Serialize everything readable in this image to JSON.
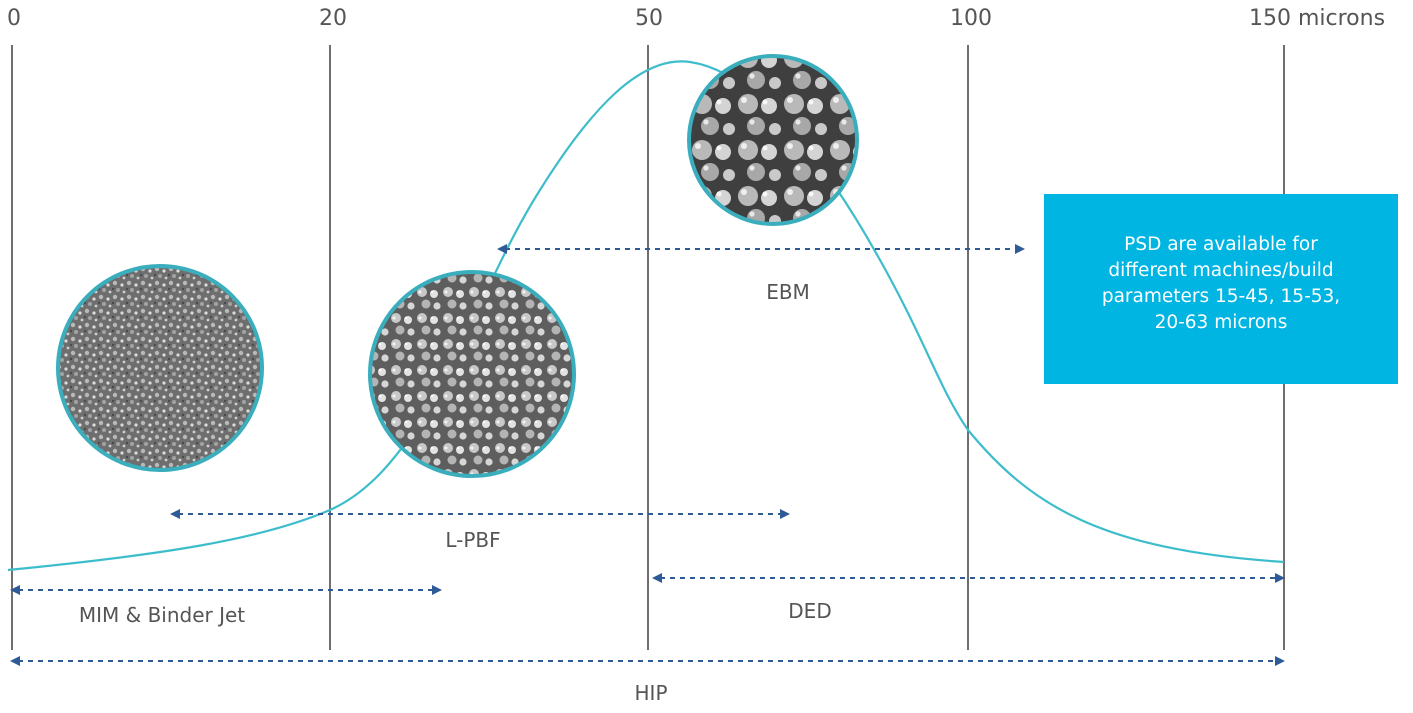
{
  "scale": {
    "ticks": [
      {
        "value": "0",
        "label": "0"
      },
      {
        "value": "20",
        "label": "20"
      },
      {
        "value": "50",
        "label": "50"
      },
      {
        "value": "100",
        "label": "100"
      },
      {
        "value": "150",
        "label": "150 microns"
      }
    ]
  },
  "processes": [
    {
      "id": "ebm",
      "label": "EBM"
    },
    {
      "id": "lpbf",
      "label": "L-PBF"
    },
    {
      "id": "mim",
      "label": "MIM & Binder Jet"
    },
    {
      "id": "ded",
      "label": "DED"
    },
    {
      "id": "hip",
      "label": "HIP"
    }
  ],
  "callout": {
    "lines": [
      "PSD are available for",
      "different machines/build",
      "parameters 15-45, 15-53,",
      "20-63 microns"
    ]
  },
  "colors": {
    "curve": "#3dbdcc",
    "arrow": "#2e5a96",
    "gridline": "#4a4a4a",
    "callout_bg": "#00b5e2",
    "circle_border": "#3aaebd"
  }
}
